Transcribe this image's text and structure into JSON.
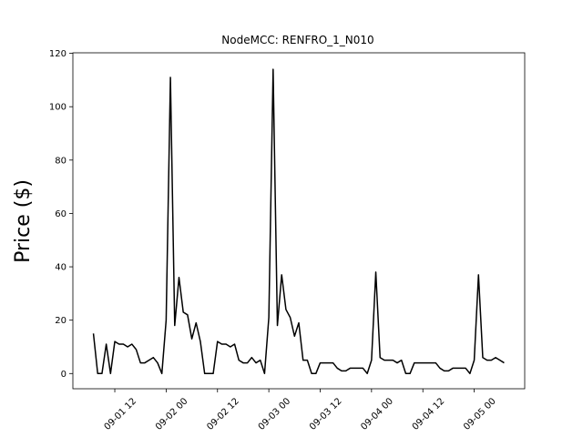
{
  "chart_data": {
    "type": "line",
    "title": "NodeMCC: RENFRO_1_N010",
    "ylabel": "Price ($)",
    "x": [
      "09-01 07",
      "09-01 08",
      "09-01 09",
      "09-01 10",
      "09-01 11",
      "09-01 12",
      "09-01 13",
      "09-01 14",
      "09-01 15",
      "09-01 16",
      "09-01 17",
      "09-01 18",
      "09-01 19",
      "09-01 20",
      "09-01 21",
      "09-01 22",
      "09-01 23",
      "09-02 00",
      "09-02 01",
      "09-02 02",
      "09-02 03",
      "09-02 04",
      "09-02 05",
      "09-02 06",
      "09-02 07",
      "09-02 08",
      "09-02 09",
      "09-02 10",
      "09-02 11",
      "09-02 12",
      "09-02 13",
      "09-02 14",
      "09-02 15",
      "09-02 16",
      "09-02 17",
      "09-02 18",
      "09-02 19",
      "09-02 20",
      "09-02 21",
      "09-02 22",
      "09-02 23",
      "09-03 00",
      "09-03 01",
      "09-03 02",
      "09-03 03",
      "09-03 04",
      "09-03 05",
      "09-03 06",
      "09-03 07",
      "09-03 08",
      "09-03 09",
      "09-03 10",
      "09-03 11",
      "09-03 12",
      "09-03 13",
      "09-03 14",
      "09-03 15",
      "09-03 16",
      "09-03 17",
      "09-03 18",
      "09-03 19",
      "09-03 20",
      "09-03 21",
      "09-03 22",
      "09-03 23",
      "09-04 00",
      "09-04 01",
      "09-04 02",
      "09-04 03",
      "09-04 04",
      "09-04 05",
      "09-04 06",
      "09-04 07",
      "09-04 08",
      "09-04 09",
      "09-04 10",
      "09-04 11",
      "09-04 12",
      "09-04 13",
      "09-04 14",
      "09-04 15",
      "09-04 16",
      "09-04 17",
      "09-04 18",
      "09-04 19",
      "09-04 20",
      "09-04 21",
      "09-04 22",
      "09-04 23",
      "09-05 00",
      "09-05 01",
      "09-05 02",
      "09-05 03",
      "09-05 04",
      "09-05 05",
      "09-05 06",
      "09-05 07"
    ],
    "series": [
      {
        "color": "#000000",
        "values": [
          15,
          0,
          0,
          11,
          0,
          12,
          11,
          11,
          10,
          11,
          9,
          4,
          4,
          5,
          6,
          4,
          0,
          20,
          111,
          18,
          36,
          23,
          22,
          13,
          19,
          12,
          0,
          0,
          0,
          12,
          11,
          11,
          10,
          11,
          5,
          4,
          4,
          6,
          4,
          5,
          0,
          21,
          114,
          18,
          37,
          24,
          21,
          14,
          19,
          5,
          5,
          0,
          0,
          4,
          4,
          4,
          4,
          2,
          1,
          1,
          2,
          2,
          2,
          2,
          0,
          5,
          38,
          6,
          5,
          5,
          5,
          4,
          5,
          0,
          0,
          4,
          4,
          4,
          4,
          4,
          4,
          2,
          1,
          1,
          2,
          2,
          2,
          2,
          0,
          5,
          37,
          6,
          5,
          5,
          6,
          5,
          4
        ]
      }
    ],
    "xlim": [
      "09-01 02:12",
      "09-05 11:48"
    ],
    "xticks": [
      "09-01 12",
      "09-02 00",
      "09-02 12",
      "09-03 00",
      "09-03 12",
      "09-04 00",
      "09-04 12",
      "09-05 00"
    ],
    "ylim": [
      -5.7,
      120.2
    ],
    "yticks": [
      0,
      20,
      40,
      60,
      80,
      100,
      120
    ]
  }
}
